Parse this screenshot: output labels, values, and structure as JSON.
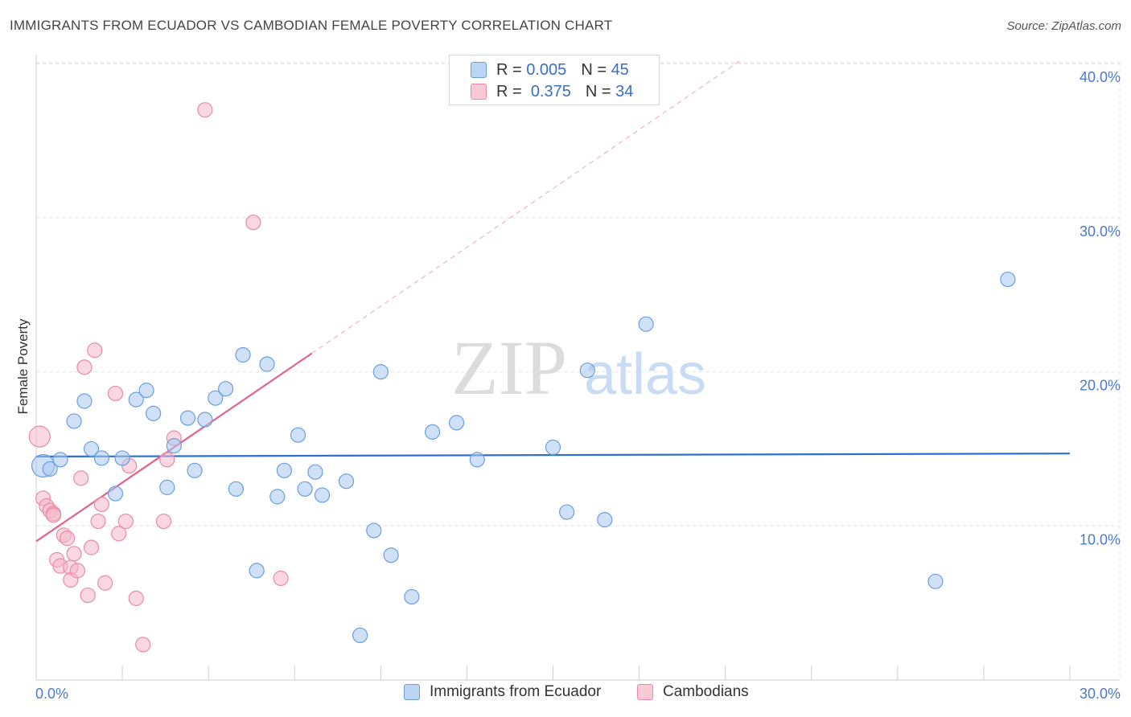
{
  "title": "IMMIGRANTS FROM ECUADOR VS CAMBODIAN FEMALE POVERTY CORRELATION CHART",
  "source": "Source: ZipAtlas.com",
  "watermark": {
    "zip": "ZIP",
    "atlas": "atlas"
  },
  "legend": {
    "rows": [
      {
        "r_label": "R =",
        "r_value": "0.005",
        "n_label": "N =",
        "n_value": "45"
      },
      {
        "r_label": "R =",
        "r_value": "0.375",
        "n_label": "N =",
        "n_value": "34"
      }
    ]
  },
  "bottom_legend": {
    "ecuador": "Immigrants from Ecuador",
    "cambodians": "Cambodians"
  },
  "colors": {
    "ecuador_fill": "#a9c8f0",
    "ecuador_stroke": "#6a9ee0",
    "ecuador_line": "#2f6fd0",
    "cambodian_fill": "#f6b8c9",
    "cambodian_stroke": "#e98aa8",
    "cambodian_line": "#e0648e"
  },
  "chart_data": {
    "type": "scatter",
    "title": "IMMIGRANTS FROM ECUADOR VS CAMBODIAN FEMALE POVERTY CORRELATION CHART",
    "xlabel": "",
    "ylabel": "Female Poverty",
    "xlim": [
      0,
      30
    ],
    "ylim": [
      0,
      40
    ],
    "x_ticks": [
      "0.0%",
      "30.0%"
    ],
    "y_ticks": [
      "10.0%",
      "20.0%",
      "30.0%",
      "40.0%"
    ],
    "y_tick_values": [
      10,
      20,
      30,
      40
    ],
    "grid": true,
    "legend_position": "top-center",
    "series": [
      {
        "name": "Immigrants from Ecuador",
        "color": "#a9c8f0",
        "points": [
          [
            0.2,
            13.9
          ],
          [
            0.4,
            13.7
          ],
          [
            0.7,
            14.3
          ],
          [
            1.1,
            16.8
          ],
          [
            1.4,
            18.1
          ],
          [
            1.6,
            15.0
          ],
          [
            1.9,
            14.4
          ],
          [
            2.3,
            12.1
          ],
          [
            2.5,
            14.4
          ],
          [
            2.9,
            18.2
          ],
          [
            3.2,
            18.8
          ],
          [
            3.4,
            17.3
          ],
          [
            3.8,
            12.5
          ],
          [
            4.0,
            15.2
          ],
          [
            4.4,
            17.0
          ],
          [
            4.6,
            13.6
          ],
          [
            4.9,
            16.9
          ],
          [
            5.2,
            18.3
          ],
          [
            5.5,
            18.9
          ],
          [
            5.8,
            12.4
          ],
          [
            6.0,
            21.1
          ],
          [
            6.4,
            7.1
          ],
          [
            6.7,
            20.5
          ],
          [
            7.0,
            11.9
          ],
          [
            7.2,
            13.6
          ],
          [
            7.6,
            15.9
          ],
          [
            7.8,
            12.4
          ],
          [
            8.1,
            13.5
          ],
          [
            8.3,
            12.0
          ],
          [
            9.0,
            12.9
          ],
          [
            9.4,
            2.9
          ],
          [
            9.8,
            9.7
          ],
          [
            10.0,
            20.0
          ],
          [
            10.3,
            8.1
          ],
          [
            10.9,
            5.4
          ],
          [
            11.5,
            16.1
          ],
          [
            12.2,
            16.7
          ],
          [
            12.8,
            14.3
          ],
          [
            15.0,
            15.1
          ],
          [
            15.4,
            10.9
          ],
          [
            16.0,
            20.1
          ],
          [
            16.5,
            10.4
          ],
          [
            17.7,
            23.1
          ],
          [
            26.1,
            6.4
          ],
          [
            28.2,
            26.0
          ]
        ],
        "trend": {
          "x": [
            0,
            30
          ],
          "y": [
            14.5,
            14.7
          ],
          "style": "solid"
        }
      },
      {
        "name": "Cambodians",
        "color": "#f6b8c9",
        "points": [
          [
            0.1,
            15.8
          ],
          [
            0.2,
            11.8
          ],
          [
            0.3,
            11.3
          ],
          [
            0.4,
            11.0
          ],
          [
            0.5,
            10.8
          ],
          [
            0.6,
            7.8
          ],
          [
            0.7,
            7.4
          ],
          [
            0.8,
            9.4
          ],
          [
            0.9,
            9.2
          ],
          [
            1.0,
            7.3
          ],
          [
            1.0,
            6.5
          ],
          [
            1.1,
            8.2
          ],
          [
            1.2,
            7.1
          ],
          [
            1.3,
            13.1
          ],
          [
            1.4,
            20.3
          ],
          [
            1.5,
            5.5
          ],
          [
            1.6,
            8.6
          ],
          [
            1.7,
            21.4
          ],
          [
            1.8,
            10.3
          ],
          [
            1.9,
            11.4
          ],
          [
            2.0,
            6.3
          ],
          [
            2.3,
            18.6
          ],
          [
            2.4,
            9.5
          ],
          [
            2.6,
            10.3
          ],
          [
            2.7,
            13.9
          ],
          [
            2.9,
            5.3
          ],
          [
            3.1,
            2.3
          ],
          [
            3.7,
            10.3
          ],
          [
            3.8,
            14.3
          ],
          [
            4.0,
            15.7
          ],
          [
            4.9,
            37.0
          ],
          [
            6.3,
            29.7
          ],
          [
            7.1,
            6.6
          ],
          [
            0.5,
            10.7
          ]
        ],
        "trend": {
          "x": [
            0,
            8
          ],
          "y": [
            9.0,
            21.2
          ],
          "style": "solid",
          "extension": {
            "x": [
              8,
              20.5
            ],
            "y": [
              21.2,
              40.3
            ],
            "style": "dashed"
          }
        }
      }
    ]
  }
}
